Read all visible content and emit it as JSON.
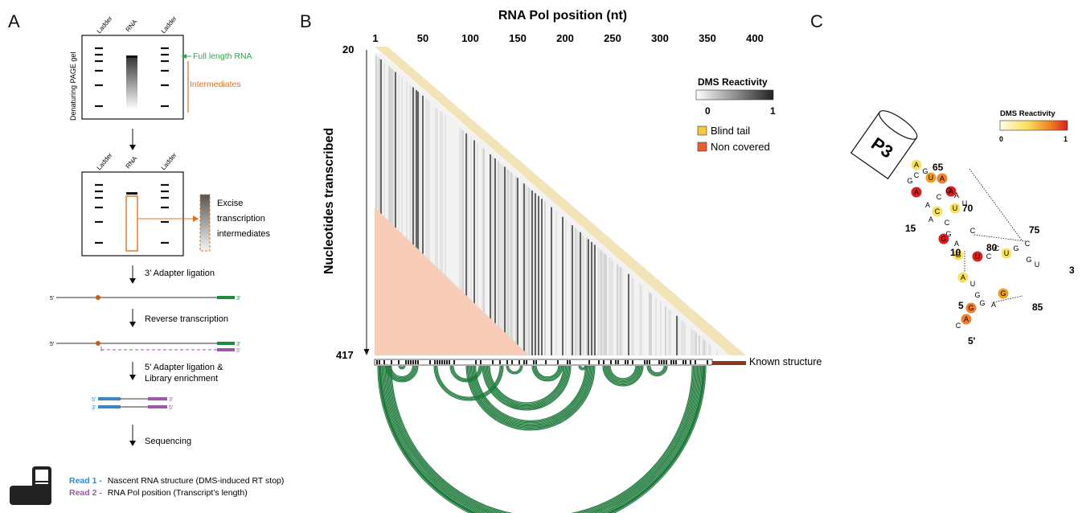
{
  "panel_a": {
    "letter": "A",
    "gel1": {
      "side_label": "Denaturing PAGE gel",
      "lane_labels": [
        "Ladder",
        "RNA",
        "Ladder"
      ],
      "full_length": "Full length RNA",
      "intermediates": "Intermediates"
    },
    "gel2": {
      "lane_labels": [
        "Ladder",
        "RNA",
        "Ladder"
      ],
      "excise": [
        "Excise",
        "transcription",
        "intermediates"
      ]
    },
    "steps": [
      "3’ Adapter ligation",
      "Reverse transcription",
      "5’ Adapter ligation &",
      "Library enrichment",
      "Sequencing"
    ],
    "end_labels": {
      "five": "5'",
      "three": "3'"
    },
    "read1_prefix": "Read 1 -",
    "read1_text": "Nascent RNA structure (DMS-induced RT stop)",
    "read2_prefix": "Read 2 -",
    "read2_text": "RNA Pol position (Transcript’s length)",
    "colors": {
      "green": "#1e8a3c",
      "orange": "#e07020",
      "blue": "#3a86c8",
      "purple": "#9b59a6"
    }
  },
  "panel_b": {
    "letter": "B",
    "x_title": "RNA Pol position (nt)",
    "x_ticks": [
      "1",
      "50",
      "100",
      "150",
      "200",
      "250",
      "300",
      "350",
      "400"
    ],
    "y_title": "Nucleotides transcribed",
    "y_top": "20",
    "y_bottom": "417",
    "legend_title": "DMS Reactivity",
    "legend_min": "0",
    "legend_max": "1",
    "blind_tail": "Blind tail",
    "non_covered": "Non covered",
    "known_structure": "Known structure",
    "colors": {
      "blind_tail": "#f2e4b8",
      "non_covered": "#f7cdb8",
      "arc": "#1f7a3c",
      "tail_bar": "#8a3a22"
    }
  },
  "panel_c": {
    "letter": "C",
    "helix_label": "P3",
    "legend_title": "DMS Reactivity",
    "legend_min": "0",
    "legend_max": "1",
    "numbers": [
      "65",
      "70",
      "75",
      "15",
      "80",
      "3",
      "10",
      "5",
      "85",
      "5'"
    ],
    "nucleotides": [
      "A",
      "G",
      "C",
      "G",
      "U",
      "A",
      "A",
      "A",
      "C",
      "G",
      "A",
      "U",
      "C",
      "A",
      "A",
      "C",
      "G",
      "G",
      "A",
      "U",
      "C",
      "G",
      "U",
      "C",
      "C",
      "U",
      "G",
      "C",
      "G",
      "U",
      "A",
      "U",
      "G",
      "G",
      "A",
      "G",
      "G",
      "A",
      "C"
    ]
  }
}
